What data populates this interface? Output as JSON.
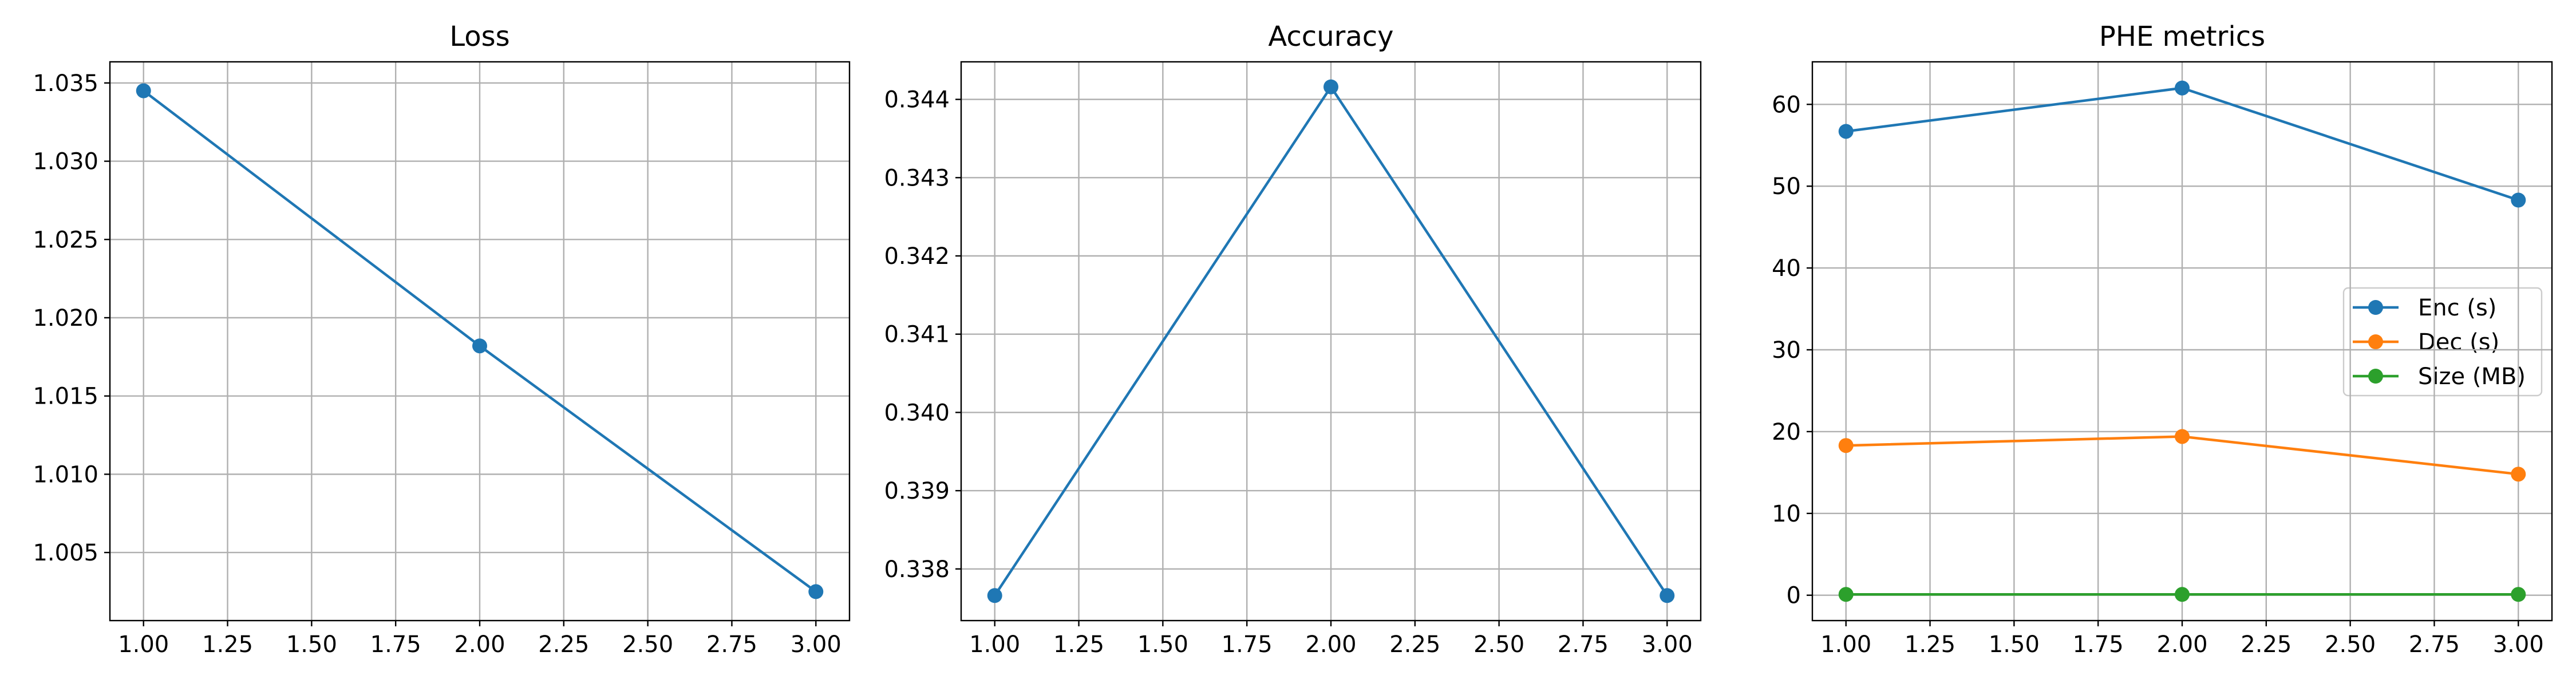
{
  "colors": {
    "background": "#ffffff",
    "axis": "#000000",
    "grid": "#b0b0b0",
    "enc": "#1f77b4",
    "dec": "#ff7f0e",
    "size": "#2ca02c",
    "legend_border": "#cccccc"
  },
  "chart_data": [
    {
      "type": "line",
      "title": "Loss",
      "xlabel": "",
      "ylabel": "",
      "xlim": [
        0.9,
        3.1
      ],
      "ylim": [
        1.00065,
        1.03635
      ],
      "x_ticks": [
        1.0,
        1.25,
        1.5,
        1.75,
        2.0,
        2.25,
        2.5,
        2.75,
        3.0
      ],
      "x_tick_labels": [
        "1.00",
        "1.25",
        "1.50",
        "1.75",
        "2.00",
        "2.25",
        "2.50",
        "2.75",
        "3.00"
      ],
      "y_ticks": [
        1.005,
        1.01,
        1.015,
        1.02,
        1.025,
        1.03,
        1.035
      ],
      "y_tick_labels": [
        "1.005",
        "1.010",
        "1.015",
        "1.020",
        "1.025",
        "1.030",
        "1.035"
      ],
      "grid": true,
      "series": [
        {
          "name": "",
          "color_key": "enc",
          "x": [
            1,
            2,
            3
          ],
          "y": [
            1.0345,
            1.0182,
            1.0025
          ]
        }
      ]
    },
    {
      "type": "line",
      "title": "Accuracy",
      "xlabel": "",
      "ylabel": "",
      "xlim": [
        0.9,
        3.1
      ],
      "ylim": [
        0.33734,
        0.34448
      ],
      "x_ticks": [
        1.0,
        1.25,
        1.5,
        1.75,
        2.0,
        2.25,
        2.5,
        2.75,
        3.0
      ],
      "x_tick_labels": [
        "1.00",
        "1.25",
        "1.50",
        "1.75",
        "2.00",
        "2.25",
        "2.50",
        "2.75",
        "3.00"
      ],
      "y_ticks": [
        0.338,
        0.339,
        0.34,
        0.341,
        0.342,
        0.343,
        0.344
      ],
      "y_tick_labels": [
        "0.338",
        "0.339",
        "0.340",
        "0.341",
        "0.342",
        "0.343",
        "0.344"
      ],
      "grid": true,
      "series": [
        {
          "name": "",
          "color_key": "enc",
          "x": [
            1,
            2,
            3
          ],
          "y": [
            0.33766,
            0.34416,
            0.33766
          ]
        }
      ]
    },
    {
      "type": "line",
      "title": "PHE metrics",
      "xlabel": "",
      "ylabel": "",
      "xlim": [
        0.9,
        3.1
      ],
      "ylim": [
        -3.1,
        65.2
      ],
      "x_ticks": [
        1.0,
        1.25,
        1.5,
        1.75,
        2.0,
        2.25,
        2.5,
        2.75,
        3.0
      ],
      "x_tick_labels": [
        "1.00",
        "1.25",
        "1.50",
        "1.75",
        "2.00",
        "2.25",
        "2.50",
        "2.75",
        "3.00"
      ],
      "y_ticks": [
        0,
        10,
        20,
        30,
        40,
        50,
        60
      ],
      "y_tick_labels": [
        "0",
        "10",
        "20",
        "30",
        "40",
        "50",
        "60"
      ],
      "grid": true,
      "legend": "center-right",
      "series": [
        {
          "name": "Enc (s)",
          "color_key": "enc",
          "x": [
            1,
            2,
            3
          ],
          "y": [
            56.7,
            62.0,
            48.3
          ]
        },
        {
          "name": "Dec (s)",
          "color_key": "dec",
          "x": [
            1,
            2,
            3
          ],
          "y": [
            18.3,
            19.4,
            14.8
          ]
        },
        {
          "name": "Size (MB)",
          "color_key": "size",
          "x": [
            1,
            2,
            3
          ],
          "y": [
            0.1,
            0.1,
            0.1
          ]
        }
      ]
    }
  ]
}
